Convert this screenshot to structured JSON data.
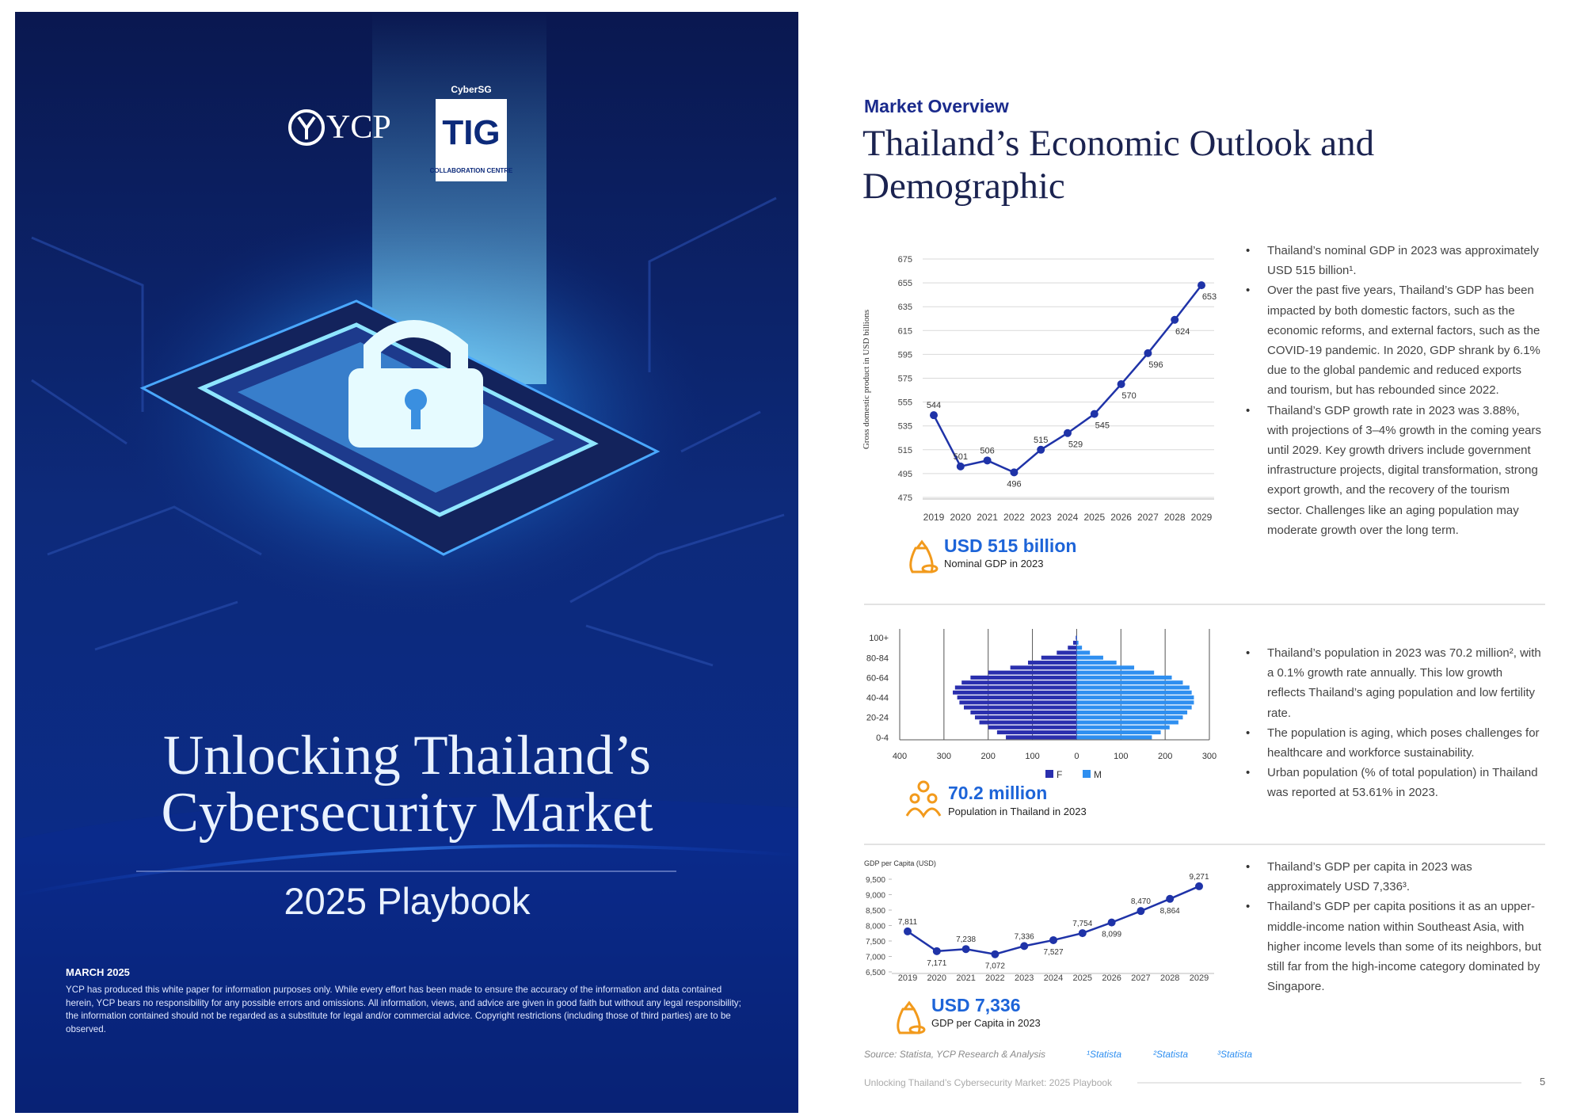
{
  "cover": {
    "logos": {
      "ycp": "YCP",
      "cybersg": "CyberSG",
      "tig": "TIG",
      "centre": "COLLABORATION CENTRE"
    },
    "title": "Unlocking Thailand’s Cybersecurity Market",
    "subtitle": "2025 Playbook",
    "date": "MARCH 2025",
    "disclaimer": "YCP has produced this white paper for information purposes only. While every effort has been made to ensure the accuracy of the information and data contained herein, YCP bears no responsibility for any possible errors and omissions. All information, views, and advice are given in good faith but without any legal responsibility; the information contained should not be regarded as a substitute for legal and/or commercial advice. Copyright restrictions (including those of third parties) are to be observed."
  },
  "page": {
    "section": "Market Overview",
    "title": "Thailand’s Economic Outlook and Demographic",
    "blocks": [
      {
        "stat": "USD 515 billion",
        "stat_caption": "Nominal GDP in 2023",
        "bullets": [
          "Thailand’s nominal GDP in 2023 was approximately USD 515 billion¹.",
          "Over the past five years, Thailand’s GDP has been impacted by both domestic factors, such as the economic reforms, and external factors, such as the COVID-19 pandemic. In 2020, GDP shrank by 6.1% due to the global pandemic and reduced exports and tourism, but has rebounded since 2022.",
          "Thailand’s GDP growth rate in 2023 was 3.88%, with projections of 3–4% growth in the coming years until 2029. Key growth drivers include government infrastructure projects, digital transformation, strong export growth, and the recovery of the tourism sector. Challenges like an aging population may moderate growth over the long term."
        ]
      },
      {
        "stat": "70.2 million",
        "stat_caption": "Population in Thailand in 2023",
        "bullets": [
          "Thailand’s population in 2023 was 70.2 million², with a 0.1% growth rate annually. This low growth reflects Thailand’s aging population and low fertility rate.",
          "The population is aging, which poses challenges for healthcare and workforce sustainability.",
          "Urban population (% of total population) in Thailand was reported at 53.61% in 2023."
        ]
      },
      {
        "stat": "USD 7,336",
        "stat_caption": "GDP per Capita in 2023",
        "bullets": [
          "Thailand’s GDP per capita in 2023 was approximately USD 7,336³.",
          "Thailand’s GDP per capita positions it as an upper-middle-income nation within Southeast Asia, with higher income levels than some of its neighbors, but still far from the high-income category dominated by Singapore."
        ]
      }
    ],
    "source": "Source: Statista, YCP Research & Analysis",
    "notes": [
      "¹Statista",
      "²Statista",
      "³Statista"
    ],
    "footer": "Unlocking Thailand’s Cybersecurity Market: 2025 Playbook",
    "page_number": 5
  },
  "chart_data": [
    {
      "type": "line",
      "y_label": "Gross domestic product in USD billions",
      "categories": [
        "2019",
        "2020",
        "2021",
        "2022",
        "2023",
        "2024",
        "2025",
        "2026",
        "2027",
        "2028",
        "2029"
      ],
      "values": [
        544,
        501,
        506,
        496,
        515,
        529,
        545,
        570,
        596,
        624,
        653
      ],
      "color": "#1f33a8",
      "ylim": [
        475,
        675
      ],
      "yticks": [
        475,
        495,
        515,
        535,
        555,
        575,
        595,
        615,
        635,
        655,
        675
      ],
      "grid": true
    },
    {
      "type": "pyramid",
      "categories": [
        "0-4",
        null,
        null,
        null,
        "20-24",
        null,
        null,
        null,
        "40-44",
        null,
        null,
        null,
        "60-64",
        null,
        null,
        null,
        "80-84",
        null,
        null,
        null,
        "100+"
      ],
      "series": [
        {
          "name": "F",
          "color": "#2a2fae",
          "values": [
            -160,
            -180,
            -200,
            -220,
            -230,
            -240,
            -255,
            -265,
            -270,
            -280,
            -275,
            -260,
            -240,
            -200,
            -150,
            -110,
            -80,
            -45,
            -20,
            -8,
            -2
          ]
        },
        {
          "name": "M",
          "color": "#2f8ff0",
          "values": [
            170,
            190,
            210,
            230,
            240,
            250,
            260,
            265,
            265,
            260,
            255,
            240,
            215,
            175,
            130,
            90,
            60,
            30,
            12,
            4,
            1
          ]
        }
      ],
      "xlim": [
        -400,
        300
      ],
      "xticks": [
        {
          "value": -400,
          "label": "400"
        },
        {
          "value": -300,
          "label": "300"
        },
        {
          "value": -200,
          "label": "200"
        },
        {
          "value": -100,
          "label": "100"
        },
        0,
        100,
        200,
        300
      ],
      "grid": true,
      "legend": "bottom"
    },
    {
      "type": "line",
      "y_label": "GDP per Capita (USD)",
      "categories": [
        "2019",
        "2020",
        "2021",
        "2022",
        "2023",
        "2024",
        "2025",
        "2026",
        "2027",
        "2028",
        "2029"
      ],
      "values": [
        7811,
        7171,
        7238,
        7072,
        7336,
        7527,
        7754,
        8099,
        8470,
        8864,
        9271
      ],
      "value_labels": [
        "7,811",
        "7,171",
        "7,238",
        "7,072",
        "7,336",
        "7,527",
        "7,754",
        "8,099",
        "8,470",
        "8,864",
        "9,271"
      ],
      "color": "#1f33a8",
      "ylim": [
        6500,
        9500
      ],
      "yticks": [
        {
          "value": 6500,
          "label": "6,500"
        },
        {
          "value": 7000,
          "label": "7,000"
        },
        {
          "value": 7500,
          "label": "7,500"
        },
        {
          "value": 8000,
          "label": "8,000"
        },
        {
          "value": 8500,
          "label": "8,500"
        },
        {
          "value": 9000,
          "label": "9,000"
        },
        {
          "value": 9500,
          "label": "9,500"
        }
      ],
      "grid": false
    }
  ]
}
